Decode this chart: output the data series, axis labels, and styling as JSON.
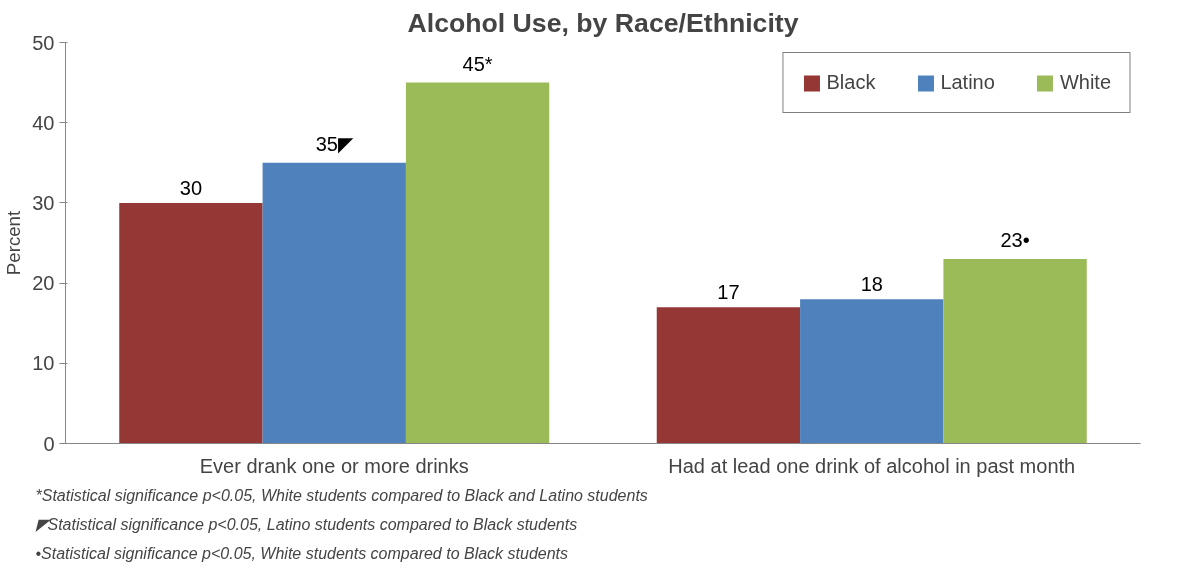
{
  "chart_data": {
    "type": "bar",
    "title": "Alcohol Use, by Race/Ethnicity",
    "ylabel": "Percent",
    "categories": [
      "Ever drank one or more drinks",
      "Had at lead one drink of alcohol in past month"
    ],
    "series": [
      {
        "name": "Black",
        "color": "#953735",
        "values": [
          30,
          17
        ],
        "value_labels": [
          "30",
          "17"
        ]
      },
      {
        "name": "Latino",
        "color": "#4f81bd",
        "values": [
          35,
          18
        ],
        "value_labels": [
          "35◤",
          "18"
        ]
      },
      {
        "name": "White",
        "color": "#9bbb59",
        "values": [
          45,
          23
        ],
        "value_labels": [
          "45*",
          "23•"
        ]
      }
    ],
    "ylim": [
      0,
      50
    ],
    "yticks": [
      0,
      10,
      20,
      30,
      40,
      50
    ],
    "grid": false,
    "legend": "top right",
    "annotations": [
      "*Statistical significance p<0.05, White students compared to Black and Latino students",
      "◤Statistical significance p<0.05, Latino students compared to Black students",
      "•Statistical significance p<0.05, White students compared to Black students"
    ]
  }
}
